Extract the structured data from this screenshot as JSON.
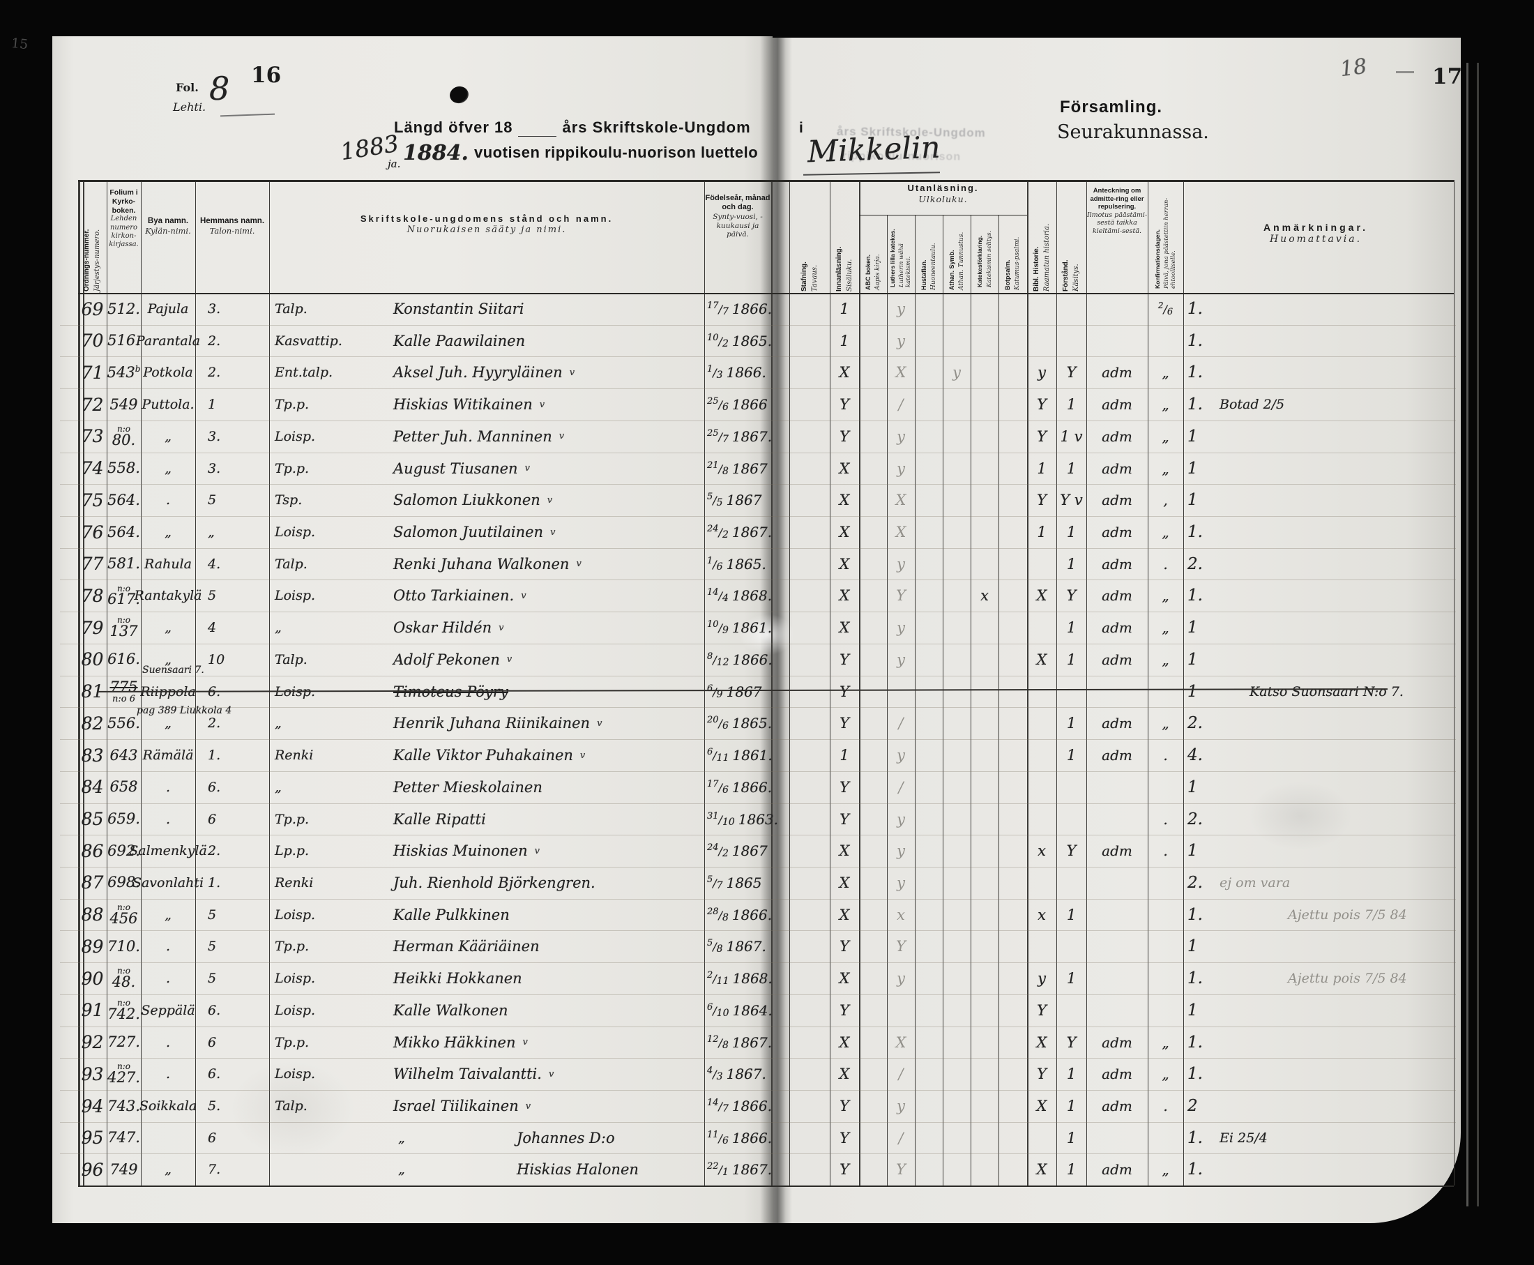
{
  "scan": {
    "page_left_number": "16",
    "page_right_number": "17",
    "margin_ghost_left": "15",
    "ghost_page_number_right": "18",
    "folio_label_sv": "Fol.",
    "folio_label_fi": "Lehti.",
    "folio_value": "8",
    "ink_color": "#1c1c1c",
    "pencil_color": "#92908a",
    "paper_color": "#ebeae6"
  },
  "title": {
    "line1_sv_a": "Längd öfver 18",
    "line1_sv_b": "års Skriftskole-Ungdom",
    "line1_i": "i",
    "hand_year_left": "1883",
    "hand_ja": "ja.",
    "hand_year_right": "1884.",
    "line2_fi": "vuotisen rippikoulu-nuorison luettelo",
    "parish_hand": "Mikkelin",
    "parish_sv": "Församling.",
    "parish_fi": "Seurakunnassa.",
    "ghost_line1": "års Skriftskole-Ungdom",
    "ghost_line2": "rippikoulu-nuorison"
  },
  "table": {
    "headers": {
      "ordnr": {
        "sv": "Ordnings-nummer.",
        "fi": "Järjestys-numero."
      },
      "folium": {
        "sv": "Folium i Kyrko-boken.",
        "fi": "Lehden numero kirkon-kirjassa."
      },
      "village": {
        "sv": "Bya namn.",
        "fi": "Kylän-nimi."
      },
      "farm": {
        "sv": "Hemmans namn.",
        "fi": "Talon-nimi."
      },
      "name": {
        "sv": "Skriftskole-ungdomens stånd och namn.",
        "fi": "Nuorukaisen sääty ja nimi."
      },
      "birth": {
        "sv": "Födelseår, månad och dag.",
        "fi": "Synty-vuosi, -kuukausi ja päivä."
      },
      "stafning": {
        "sv": "Stafning.",
        "fi": "Tavaus."
      },
      "innan": {
        "sv": "Innanläsning.",
        "fi": "Sisäluku."
      },
      "utan_group": {
        "sv": "Utanläsning.",
        "fi": "Ulkoluku."
      },
      "abc": {
        "sv": "ABC boken.",
        "fi": "Aapis kirja."
      },
      "luth": {
        "sv": "Luthers lilla katekes.",
        "fi": "Lutherin wähä katekismi."
      },
      "hustaf": {
        "sv": "Hustaflan.",
        "fi": "Huoneentaulu."
      },
      "athan": {
        "sv": "Athan. Symb.",
        "fi": "Athan. Tunnustus."
      },
      "katek": {
        "sv": "Katekesförklaring.",
        "fi": "Katekismin selitys."
      },
      "bot": {
        "sv": "Botpsalm.",
        "fi": "Katumus-psalmi."
      },
      "bibl": {
        "sv": "Bibl. Historie.",
        "fi": "Raamatun historia."
      },
      "forstand": {
        "sv": "Förstånd.",
        "fi": "Käsitys."
      },
      "admit": {
        "sv": "Anteckning om admitte-ring eller repulsering.",
        "fi": "Ilmotus päästämi-sestä taikka kieltämi-sestä."
      },
      "konf": {
        "sv": "Konfirmationsdagen.",
        "fi": "Päivä, jona päästettiin herran-ehtoolliselle."
      },
      "anm": {
        "sv": "Anmärkningar.",
        "fi": "Huomattavia."
      }
    },
    "rows": [
      {
        "nr": "69",
        "folio": "512.",
        "village": "Pajula",
        "farm": "3.",
        "occ": "Talp.",
        "name": "Konstantin Siitari",
        "birth": {
          "d": "17",
          "m": "7",
          "y": "1866."
        },
        "marks": {
          "innan": "1",
          "luth": "y",
          "konf": "2/6",
          "anm": "1."
        }
      },
      {
        "nr": "70",
        "folio": "516.",
        "village": "Parantala",
        "farm": "2.",
        "occ": "Kasvattip.",
        "name": "Kalle Paawilainen",
        "birth": {
          "d": "10",
          "m": "2",
          "y": "1865."
        },
        "marks": {
          "innan": "1",
          "luth": "y",
          "anm": "1."
        }
      },
      {
        "nr": "71",
        "folio": "543",
        "folio_sup": "b",
        "village": "Potkola",
        "farm": "2.",
        "occ": "Ent.talp.",
        "name": "Aksel Juh. Hyyryläinen",
        "name_mark": "v",
        "birth": {
          "d": "1",
          "m": "3",
          "y": "1866."
        },
        "marks": {
          "innan": "X",
          "luth": "X",
          "athan": "y",
          "bibl": "y",
          "forst": "Y",
          "adm": "adm",
          "konf": "„",
          "anm": "1."
        }
      },
      {
        "nr": "72",
        "folio": "549",
        "village": "Puttola.",
        "farm": "1",
        "occ": "Tp.p.",
        "name": "Hiskias Witikainen",
        "name_mark": "v",
        "birth": {
          "d": "25",
          "m": "6",
          "y": "1866"
        },
        "marks": {
          "innan": "Y",
          "luth": "/",
          "bibl": "Y",
          "forst": "1",
          "adm": "adm",
          "konf": "„",
          "anm": "1.",
          "remark": "Botad 2/5"
        }
      },
      {
        "nr": "73",
        "folio_pre": "n:o",
        "folio": "80.",
        "village": "„",
        "farm": "3.",
        "occ": "Loisp.",
        "name": "Petter Juh. Manninen",
        "name_mark": "v",
        "birth": {
          "d": "25",
          "m": "7",
          "y": "1867."
        },
        "marks": {
          "innan": "Y",
          "luth": "y",
          "bibl": "Y",
          "forst": "1 v",
          "adm": "adm",
          "konf": "„",
          "anm": "1"
        }
      },
      {
        "nr": "74",
        "folio": "558.",
        "village": "„",
        "farm": "3.",
        "occ": "Tp.p.",
        "name": "August Tiusanen",
        "name_mark": "v",
        "birth": {
          "d": "21",
          "m": "8",
          "y": "1867"
        },
        "marks": {
          "innan": "X",
          "luth": "y",
          "bibl": "1",
          "forst": "1",
          "adm": "adm",
          "konf": "„",
          "anm": "1"
        }
      },
      {
        "nr": "75",
        "folio": "564.",
        "village": ".",
        "farm": "5",
        "occ": "Tsp.",
        "name": "Salomon Liukkonen",
        "name_mark": "v",
        "birth": {
          "d": "5",
          "m": "5",
          "y": "1867"
        },
        "marks": {
          "innan": "X",
          "luth": "X",
          "bibl": "Y",
          "forst": "Y v",
          "adm": "adm",
          "konf": ",",
          "anm": "1"
        }
      },
      {
        "nr": "76",
        "folio": "564.",
        "village": "„",
        "farm": "„",
        "occ": "Loisp.",
        "name": "Salomon Juutilainen",
        "name_mark": "v",
        "birth": {
          "d": "24",
          "m": "2",
          "y": "1867."
        },
        "marks": {
          "innan": "X",
          "luth": "X",
          "bibl": "1",
          "forst": "1",
          "adm": "adm",
          "konf": "„",
          "anm": "1."
        }
      },
      {
        "nr": "77",
        "folio": "581.",
        "village": "Rahula",
        "farm": "4.",
        "occ": "Talp.",
        "name": "Renki Juhana Walkonen",
        "name_mark": "v",
        "birth": {
          "d": "1",
          "m": "6",
          "y": "1865."
        },
        "marks": {
          "innan": "X",
          "luth": "y",
          "forst": "1",
          "adm": "adm",
          "konf": ".",
          "anm": "2."
        }
      },
      {
        "nr": "78",
        "folio_pre": "n:o",
        "folio": "617.",
        "village": "Rantakylä",
        "farm": "5",
        "occ": "Loisp.",
        "name": "Otto Tarkiainen.",
        "name_mark": "v",
        "birth": {
          "d": "14",
          "m": "4",
          "y": "1868."
        },
        "marks": {
          "innan": "X",
          "luth": "Y",
          "katek": "x",
          "bibl": "X",
          "forst": "Y",
          "adm": "adm",
          "konf": "„",
          "anm": "1."
        }
      },
      {
        "nr": "79",
        "folio_pre": "n:o",
        "folio": "137",
        "village": "„",
        "farm": "4",
        "occ": "„",
        "name": "Oskar Hildén",
        "name_mark": "v",
        "birth": {
          "d": "10",
          "m": "9",
          "y": "1861."
        },
        "marks": {
          "innan": "X",
          "luth": "y",
          "forst": "1",
          "adm": "adm",
          "konf": "„",
          "anm": "1"
        }
      },
      {
        "nr": "80",
        "folio": "616.",
        "village": "„",
        "farm": "10",
        "occ": "Talp.",
        "name": "Adolf Pekonen",
        "name_mark": "v",
        "birth": {
          "d": "8",
          "m": "12",
          "y": "1866."
        },
        "marks": {
          "innan": "Y",
          "luth": "y",
          "bibl": "X",
          "forst": "1",
          "adm": "adm",
          "konf": "„",
          "anm": "1"
        }
      },
      {
        "nr": "81",
        "struck": true,
        "folio": "775",
        "folio_sub": "n:o 6",
        "village_above": "Suensaari 7.",
        "village": "Riippola",
        "village_sub": "pag 389 Liukkola 4",
        "farm": "6.",
        "occ": "Loisp.",
        "name": "Timoteus Pöyry",
        "birth": {
          "d": "6",
          "m": "9",
          "y": "1867"
        },
        "marks": {
          "innan": "Y",
          "anm": "1",
          "remark": "Katso Suonsaari N:o 7.",
          "remark_dx": 95
        }
      },
      {
        "nr": "82",
        "folio": "556.",
        "village": "„",
        "farm": "2.",
        "occ": "„",
        "name": "Henrik Juhana Riinikainen",
        "name_mark": "v",
        "birth": {
          "d": "20",
          "m": "6",
          "y": "1865."
        },
        "marks": {
          "innan": "Y",
          "luth": "/",
          "forst": "1",
          "adm": "adm",
          "konf": "„",
          "anm": "2."
        }
      },
      {
        "nr": "83",
        "folio": "643",
        "village": "Rämälä",
        "farm": "1.",
        "occ": "Renki",
        "name": "Kalle Viktor Puhakainen",
        "name_mark": "v",
        "birth": {
          "d": "6",
          "m": "11",
          "y": "1861."
        },
        "marks": {
          "innan": "1",
          "luth": "y",
          "forst": "1",
          "adm": "adm",
          "konf": ".",
          "anm": "4."
        }
      },
      {
        "nr": "84",
        "folio": "658",
        "village": ".",
        "farm": "6.",
        "occ": "„",
        "name": "Petter Mieskolainen",
        "birth": {
          "d": "17",
          "m": "6",
          "y": "1866."
        },
        "marks": {
          "innan": "Y",
          "luth": "/",
          "anm": "1"
        }
      },
      {
        "nr": "85",
        "folio": "659.",
        "village": ".",
        "farm": "6",
        "occ": "Tp.p.",
        "name": "Kalle Ripatti",
        "birth": {
          "d": "31",
          "m": "10",
          "y": "1863."
        },
        "marks": {
          "innan": "Y",
          "luth": "y",
          "konf": ".",
          "anm": "2."
        }
      },
      {
        "nr": "86",
        "folio": "692.",
        "village": "Salmenkylä",
        "farm": "2.",
        "occ": "Lp.p.",
        "name": "Hiskias Muinonen",
        "name_mark": "v",
        "birth": {
          "d": "24",
          "m": "2",
          "y": "1867"
        },
        "marks": {
          "innan": "X",
          "luth": "y",
          "bibl": "x",
          "forst": "Y",
          "adm": "adm",
          "konf": ".",
          "anm": "1"
        }
      },
      {
        "nr": "87",
        "folio": "698.",
        "village": "Savonlahti",
        "farm": "1.",
        "occ": "Renki",
        "name": "Juh. Rienhold Björkengren.",
        "birth": {
          "d": "5",
          "m": "7",
          "y": "1865"
        },
        "marks": {
          "innan": "X",
          "luth": "y",
          "anm": "2.",
          "remark": "ej om vara",
          "remark_pencil": true
        }
      },
      {
        "nr": "88",
        "folio_pre": "n:o",
        "folio": "456",
        "village": "„",
        "farm": "5",
        "occ": "Loisp.",
        "name": "Kalle Pulkkinen",
        "birth": {
          "d": "28",
          "m": "8",
          "y": "1866."
        },
        "marks": {
          "innan": "X",
          "luth": "x",
          "bibl": "x",
          "forst": "1",
          "anm": "1.",
          "remark": "Ajettu pois 7/5 84",
          "remark_pencil": true,
          "remark_dx": 150
        }
      },
      {
        "nr": "89",
        "folio": "710.",
        "village": ".",
        "farm": "5",
        "occ": "Tp.p.",
        "name": "Herman Kääriäinen",
        "birth": {
          "d": "5",
          "m": "8",
          "y": "1867."
        },
        "marks": {
          "innan": "Y",
          "luth": "Y",
          "anm": "1"
        }
      },
      {
        "nr": "90",
        "folio_pre": "n:o",
        "folio": "48.",
        "village": ".",
        "farm": "5",
        "occ": "Loisp.",
        "name": "Heikki Hokkanen",
        "birth": {
          "d": "2",
          "m": "11",
          "y": "1868."
        },
        "marks": {
          "innan": "X",
          "luth": "y",
          "bibl": "y",
          "forst": "1",
          "anm": "1.",
          "remark": "Ajettu pois 7/5 84",
          "remark_pencil": true,
          "remark_dx": 150
        }
      },
      {
        "nr": "91",
        "folio_pre": "n:o",
        "folio": "742.",
        "village": "Seppälä",
        "farm": "6.",
        "occ": "Loisp.",
        "name": "Kalle Walkonen",
        "birth": {
          "d": "6",
          "m": "10",
          "y": "1864."
        },
        "marks": {
          "innan": "Y",
          "bibl": "Y",
          "anm": "1"
        }
      },
      {
        "nr": "92",
        "folio": "727.",
        "village": ".",
        "farm": "6",
        "occ": "Tp.p.",
        "name": "Mikko Häkkinen",
        "name_mark": "v",
        "birth": {
          "d": "12",
          "m": "8",
          "y": "1867."
        },
        "marks": {
          "innan": "X",
          "luth": "X",
          "bibl": "X",
          "forst": "Y",
          "adm": "adm",
          "konf": "„",
          "anm": "1."
        }
      },
      {
        "nr": "93",
        "folio_pre": "n:o",
        "folio": "427.",
        "village": ".",
        "farm": "6.",
        "occ": "Loisp.",
        "name": "Wilhelm Taivalantti.",
        "name_mark": "v",
        "birth": {
          "d": "4",
          "m": "3",
          "y": "1867."
        },
        "marks": {
          "innan": "X",
          "luth": "/",
          "bibl": "Y",
          "forst": "1",
          "adm": "adm",
          "konf": "„",
          "anm": "1."
        }
      },
      {
        "nr": "94",
        "folio": "743.",
        "village": "Soikkala",
        "farm": "5.",
        "occ": "Talp.",
        "name": "Israel Tiilikainen",
        "name_mark": "v",
        "birth": {
          "d": "14",
          "m": "7",
          "y": "1866."
        },
        "marks": {
          "innan": "Y",
          "luth": "y",
          "bibl": "X",
          "forst": "1",
          "adm": "adm",
          "konf": ".",
          "anm": "2"
        }
      },
      {
        "nr": "95",
        "folio": "747.",
        "village": "",
        "farm": "6",
        "occ": "„",
        "name": "Johannes D:o",
        "indent": true,
        "birth": {
          "d": "11",
          "m": "6",
          "y": "1866."
        },
        "marks": {
          "innan": "Y",
          "luth": "/",
          "forst": "1",
          "anm": "1.",
          "remark": "Ei 25/4"
        }
      },
      {
        "nr": "96",
        "folio": "749",
        "village": "„",
        "farm": "7.",
        "occ": "„",
        "name": "Hiskias Halonen",
        "indent": true,
        "birth": {
          "d": "22",
          "m": "1",
          "y": "1867."
        },
        "marks": {
          "innan": "Y",
          "luth": "Y",
          "bibl": "X",
          "forst": "1",
          "adm": "adm",
          "konf": "„",
          "anm": "1."
        }
      }
    ]
  }
}
